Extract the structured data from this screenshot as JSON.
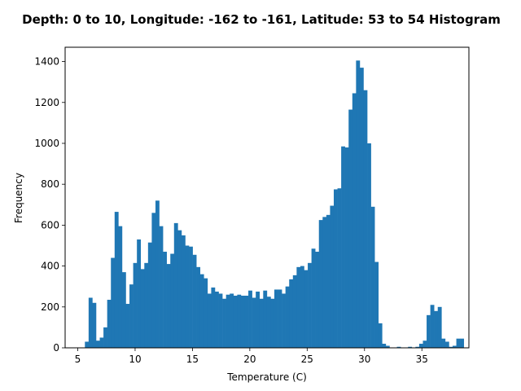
{
  "chart_data": {
    "type": "histogram",
    "title": "Depth: 0 to 10, Longitude: -162 to -161, Latitude: 53 to 54 Histogram",
    "xlabel": "Temperature (C)",
    "ylabel": "Frequency",
    "xlim": [
      3.9,
      39.1
    ],
    "ylim": [
      0,
      1470
    ],
    "xticks": [
      5,
      10,
      15,
      20,
      25,
      30,
      35
    ],
    "yticks": [
      0,
      200,
      400,
      600,
      800,
      1000,
      1200,
      1400
    ],
    "bar_color": "#1f77b4",
    "bin_start": 5.3,
    "bin_width": 0.3238,
    "counts": [
      0,
      30,
      245,
      220,
      35,
      50,
      100,
      235,
      440,
      665,
      595,
      370,
      215,
      310,
      415,
      530,
      385,
      415,
      515,
      660,
      720,
      595,
      470,
      410,
      460,
      610,
      575,
      550,
      500,
      495,
      455,
      395,
      360,
      340,
      265,
      295,
      275,
      265,
      240,
      260,
      265,
      255,
      260,
      255,
      255,
      280,
      245,
      275,
      240,
      280,
      250,
      240,
      285,
      285,
      265,
      300,
      335,
      355,
      395,
      400,
      380,
      415,
      485,
      470,
      625,
      640,
      650,
      695,
      775,
      780,
      985,
      980,
      1165,
      1245,
      1405,
      1370,
      1260,
      1000,
      690,
      420,
      120,
      20,
      10,
      0,
      0,
      5,
      0,
      0,
      5,
      0,
      5,
      20,
      35,
      160,
      210,
      180,
      200,
      45,
      30,
      5,
      10,
      45,
      45
    ]
  }
}
